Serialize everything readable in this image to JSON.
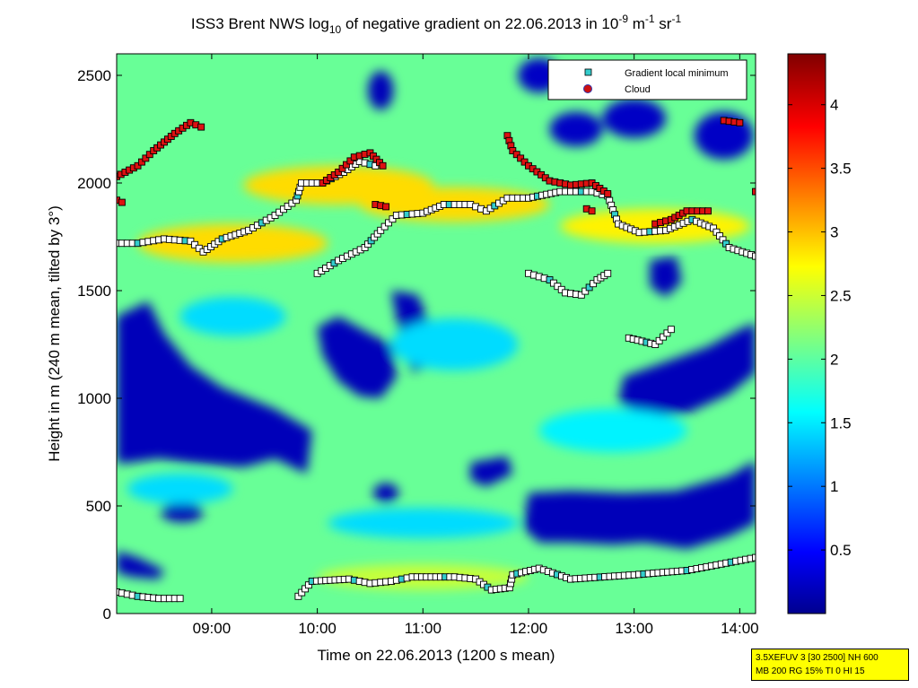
{
  "chart_data": {
    "type": "heatmap",
    "title": {
      "prefix": "ISS3 Brent NWS log",
      "sub": "10",
      "middle": " of negative gradient on 22.06.2013 in 10",
      "exp1": "-9",
      "unit1": " m",
      "exp2": "-1",
      "unit2": " sr",
      "exp3": "-1"
    },
    "xlabel": "Time on 22.06.2013 (1200 s mean)",
    "ylabel": "Height in m (240 m mean, tilted by 3°)",
    "x_range_hours": [
      8.1,
      14.15
    ],
    "y_range_m": [
      0,
      2600
    ],
    "x_ticks": [
      {
        "value": 9,
        "label": "09:00"
      },
      {
        "value": 10,
        "label": "10:00"
      },
      {
        "value": 11,
        "label": "11:00"
      },
      {
        "value": 12,
        "label": "12:00"
      },
      {
        "value": 13,
        "label": "13:00"
      },
      {
        "value": 14,
        "label": "14:00"
      }
    ],
    "y_ticks": [
      {
        "value": 0,
        "label": "0"
      },
      {
        "value": 500,
        "label": "500"
      },
      {
        "value": 1000,
        "label": "1000"
      },
      {
        "value": 1500,
        "label": "1500"
      },
      {
        "value": 2000,
        "label": "2000"
      },
      {
        "value": 2500,
        "label": "2500"
      }
    ],
    "colorbar": {
      "range": [
        0,
        4.4
      ],
      "colormap": "jet",
      "ticks": [
        {
          "value": 0.5,
          "label": "0.5"
        },
        {
          "value": 1,
          "label": "1"
        },
        {
          "value": 1.5,
          "label": "1.5"
        },
        {
          "value": 2,
          "label": "2"
        },
        {
          "value": 2.5,
          "label": "2.5"
        },
        {
          "value": 3,
          "label": "3"
        },
        {
          "value": 3.5,
          "label": "3.5"
        },
        {
          "value": 4,
          "label": "4"
        }
      ]
    },
    "legend": {
      "placement": "top-right",
      "entries": [
        {
          "name": "Gradient local minimum",
          "marker": "square",
          "color": "#33cccc"
        },
        {
          "name": "Cloud",
          "marker": "circle",
          "color": "#cc1111"
        }
      ]
    },
    "background_value": 2.1,
    "field_regions": [
      {
        "kind": "poly",
        "value": 0.25,
        "points": [
          [
            8.1,
            1380
          ],
          [
            8.4,
            1450
          ],
          [
            8.55,
            1300
          ],
          [
            8.8,
            1150
          ],
          [
            9.1,
            1050
          ],
          [
            9.35,
            1000
          ],
          [
            9.6,
            950
          ],
          [
            9.95,
            850
          ],
          [
            9.9,
            650
          ],
          [
            9.6,
            720
          ],
          [
            9.3,
            680
          ],
          [
            8.8,
            700
          ],
          [
            8.5,
            720
          ],
          [
            8.2,
            700
          ],
          [
            8.1,
            700
          ]
        ]
      },
      {
        "kind": "poly",
        "value": 0.25,
        "points": [
          [
            10.2,
            1380
          ],
          [
            10.5,
            1300
          ],
          [
            10.7,
            1250
          ],
          [
            10.75,
            1100
          ],
          [
            10.6,
            1000
          ],
          [
            10.4,
            1010
          ],
          [
            10.2,
            1080
          ],
          [
            10.05,
            1200
          ],
          [
            10.0,
            1330
          ]
        ]
      },
      {
        "kind": "poly",
        "value": 0.25,
        "points": [
          [
            10.7,
            1500
          ],
          [
            10.95,
            1480
          ],
          [
            11.1,
            1300
          ],
          [
            11.05,
            1150
          ],
          [
            10.9,
            1120
          ],
          [
            10.8,
            1250
          ]
        ]
      },
      {
        "kind": "poly",
        "value": 0.25,
        "points": [
          [
            11.45,
            700
          ],
          [
            11.8,
            730
          ],
          [
            11.85,
            650
          ],
          [
            11.6,
            590
          ],
          [
            11.45,
            620
          ]
        ]
      },
      {
        "kind": "poly",
        "value": 0.25,
        "points": [
          [
            12.0,
            560
          ],
          [
            12.4,
            570
          ],
          [
            12.9,
            560
          ],
          [
            13.4,
            570
          ],
          [
            13.9,
            640
          ],
          [
            14.15,
            710
          ],
          [
            14.15,
            420
          ],
          [
            13.9,
            360
          ],
          [
            13.5,
            300
          ],
          [
            13.1,
            330
          ],
          [
            12.8,
            320
          ],
          [
            12.4,
            330
          ],
          [
            12.1,
            330
          ],
          [
            11.95,
            400
          ]
        ]
      },
      {
        "kind": "poly",
        "value": 0.25,
        "points": [
          [
            12.9,
            1100
          ],
          [
            13.3,
            1170
          ],
          [
            13.7,
            1240
          ],
          [
            14.0,
            1320
          ],
          [
            14.15,
            1350
          ],
          [
            14.15,
            1120
          ],
          [
            13.9,
            1020
          ],
          [
            13.5,
            930
          ],
          [
            13.1,
            920
          ],
          [
            12.85,
            980
          ]
        ]
      },
      {
        "kind": "poly",
        "value": 0.25,
        "points": [
          [
            13.15,
            1640
          ],
          [
            13.4,
            1660
          ],
          [
            13.45,
            1540
          ],
          [
            13.3,
            1470
          ],
          [
            13.15,
            1520
          ]
        ]
      },
      {
        "kind": "poly",
        "value": 0.25,
        "points": [
          [
            8.1,
            290
          ],
          [
            8.3,
            260
          ],
          [
            8.55,
            200
          ],
          [
            8.5,
            160
          ],
          [
            8.25,
            170
          ],
          [
            8.1,
            190
          ]
        ]
      },
      {
        "kind": "ellipse",
        "value": 0.25,
        "cx": 8.72,
        "cy": 470,
        "rx": 0.2,
        "ry": 45
      },
      {
        "kind": "ellipse",
        "value": 0.25,
        "cx": 10.65,
        "cy": 560,
        "rx": 0.12,
        "ry": 45
      },
      {
        "kind": "ellipse",
        "value": 0.25,
        "cx": 10.6,
        "cy": 2430,
        "rx": 0.12,
        "ry": 90
      },
      {
        "kind": "ellipse",
        "value": 0.3,
        "cx": 12.1,
        "cy": 2500,
        "rx": 0.2,
        "ry": 80
      },
      {
        "kind": "ellipse",
        "value": 0.3,
        "cx": 13.0,
        "cy": 2300,
        "rx": 0.3,
        "ry": 90
      },
      {
        "kind": "ellipse",
        "value": 0.3,
        "cx": 13.85,
        "cy": 2220,
        "rx": 0.28,
        "ry": 110
      },
      {
        "kind": "ellipse",
        "value": 0.3,
        "cx": 12.45,
        "cy": 2250,
        "rx": 0.25,
        "ry": 80
      },
      {
        "kind": "ellipse",
        "value": 2.9,
        "cx": 9.2,
        "cy": 1720,
        "rx": 0.9,
        "ry": 90
      },
      {
        "kind": "ellipse",
        "value": 2.9,
        "cx": 10.2,
        "cy": 1990,
        "rx": 0.9,
        "ry": 90
      },
      {
        "kind": "ellipse",
        "value": 2.9,
        "cx": 11.3,
        "cy": 1900,
        "rx": 0.9,
        "ry": 80
      },
      {
        "kind": "ellipse",
        "value": 2.8,
        "cx": 13.2,
        "cy": 1800,
        "rx": 0.9,
        "ry": 80
      },
      {
        "kind": "ellipse",
        "value": 2.5,
        "cx": 11.0,
        "cy": 170,
        "rx": 1.0,
        "ry": 60
      },
      {
        "kind": "ellipse",
        "value": 1.5,
        "cx": 9.2,
        "cy": 1380,
        "rx": 0.5,
        "ry": 90
      },
      {
        "kind": "ellipse",
        "value": 1.5,
        "cx": 11.3,
        "cy": 1250,
        "rx": 0.6,
        "ry": 120
      },
      {
        "kind": "ellipse",
        "value": 1.5,
        "cx": 8.7,
        "cy": 580,
        "rx": 0.5,
        "ry": 70
      },
      {
        "kind": "ellipse",
        "value": 1.5,
        "cx": 11.0,
        "cy": 420,
        "rx": 0.9,
        "ry": 70
      },
      {
        "kind": "ellipse",
        "value": 1.6,
        "cx": 12.8,
        "cy": 850,
        "rx": 0.7,
        "ry": 100
      }
    ],
    "minimum_lines": [
      [
        [
          8.1,
          1720
        ],
        [
          8.3,
          1720
        ],
        [
          8.55,
          1740
        ],
        [
          8.8,
          1730
        ],
        [
          8.92,
          1680
        ],
        [
          9.1,
          1740
        ],
        [
          9.35,
          1780
        ],
        [
          9.6,
          1850
        ],
        [
          9.8,
          1920
        ],
        [
          9.85,
          2000
        ],
        [
          10.05,
          2000
        ],
        [
          10.25,
          2050
        ],
        [
          10.4,
          2100
        ],
        [
          10.55,
          2080
        ]
      ],
      [
        [
          10.0,
          1580
        ],
        [
          10.2,
          1640
        ],
        [
          10.45,
          1700
        ],
        [
          10.6,
          1780
        ],
        [
          10.75,
          1850
        ],
        [
          11.0,
          1860
        ],
        [
          11.2,
          1900
        ],
        [
          11.45,
          1900
        ],
        [
          11.6,
          1870
        ],
        [
          11.8,
          1930
        ],
        [
          12.0,
          1930
        ],
        [
          12.3,
          1960
        ],
        [
          12.6,
          1960
        ],
        [
          12.75,
          1940
        ],
        [
          12.85,
          1810
        ],
        [
          13.05,
          1770
        ],
        [
          13.3,
          1780
        ],
        [
          13.55,
          1830
        ],
        [
          13.75,
          1790
        ],
        [
          13.9,
          1700
        ],
        [
          14.15,
          1660
        ]
      ],
      [
        [
          12.0,
          1580
        ],
        [
          12.2,
          1550
        ],
        [
          12.35,
          1490
        ],
        [
          12.5,
          1480
        ],
        [
          12.65,
          1550
        ],
        [
          12.75,
          1580
        ]
      ],
      [
        [
          8.1,
          100
        ],
        [
          8.3,
          80
        ],
        [
          8.5,
          70
        ],
        [
          8.7,
          70
        ]
      ],
      [
        [
          9.82,
          80
        ],
        [
          9.95,
          150
        ],
        [
          10.3,
          160
        ],
        [
          10.5,
          140
        ],
        [
          10.7,
          150
        ],
        [
          10.9,
          170
        ],
        [
          11.3,
          170
        ],
        [
          11.5,
          160
        ],
        [
          11.65,
          110
        ],
        [
          11.82,
          120
        ],
        [
          11.85,
          180
        ],
        [
          12.1,
          210
        ],
        [
          12.4,
          160
        ],
        [
          13.0,
          180
        ],
        [
          13.5,
          200
        ],
        [
          14.15,
          260
        ]
      ],
      [
        [
          12.95,
          1280
        ],
        [
          13.2,
          1250
        ],
        [
          13.35,
          1320
        ]
      ]
    ],
    "cloud_lines": [
      [
        [
          8.1,
          2030
        ],
        [
          8.3,
          2080
        ],
        [
          8.45,
          2150
        ],
        [
          8.65,
          2230
        ],
        [
          8.8,
          2280
        ],
        [
          8.9,
          2260
        ]
      ],
      [
        [
          8.1,
          1920
        ],
        [
          8.15,
          1910
        ]
      ],
      [
        [
          10.05,
          2000
        ],
        [
          10.2,
          2050
        ],
        [
          10.35,
          2120
        ],
        [
          10.5,
          2140
        ],
        [
          10.62,
          2080
        ]
      ],
      [
        [
          10.55,
          1900
        ],
        [
          10.65,
          1890
        ]
      ],
      [
        [
          11.8,
          2220
        ],
        [
          11.85,
          2150
        ],
        [
          12.0,
          2080
        ],
        [
          12.2,
          2010
        ],
        [
          12.4,
          1990
        ],
        [
          12.6,
          2000
        ],
        [
          12.75,
          1950
        ]
      ],
      [
        [
          12.55,
          1880
        ],
        [
          12.6,
          1870
        ]
      ],
      [
        [
          13.2,
          1810
        ],
        [
          13.35,
          1830
        ],
        [
          13.5,
          1870
        ],
        [
          13.7,
          1870
        ]
      ],
      [
        [
          13.85,
          2290
        ],
        [
          14.0,
          2280
        ]
      ],
      [
        [
          14.15,
          1960
        ]
      ]
    ]
  },
  "stamp": {
    "line1": "3.5XEFUV 3 [30 2500] NH 600",
    "line2": "MB 200 RG 15% TI 0 HI 15"
  }
}
